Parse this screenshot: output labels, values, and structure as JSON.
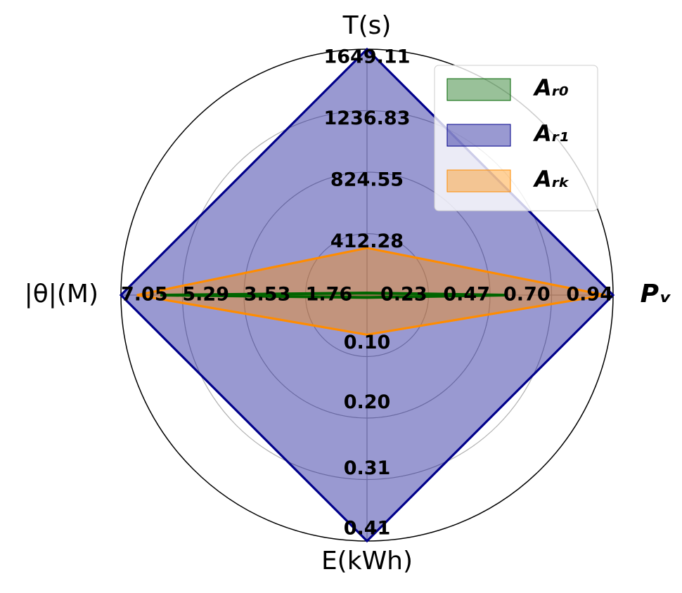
{
  "chart_data": {
    "type": "radar",
    "axes": [
      {
        "name": "T(s)",
        "lim": [
          0,
          1649.11
        ],
        "ticks": [
          412.28,
          824.55,
          1236.83,
          1649.11
        ]
      },
      {
        "name": "Pᵥ",
        "lim": [
          0,
          0.94
        ],
        "ticks": [
          0.23,
          0.47,
          {
            "value": 0.7,
            "label": "0.70"
          },
          0.94
        ]
      },
      {
        "name": "E(kWh)",
        "lim": [
          0,
          0.41
        ],
        "ticks": [
          {
            "value": 0.1,
            "label": "0.10"
          },
          {
            "value": 0.2,
            "label": "0.20"
          },
          0.31,
          0.41
        ]
      },
      {
        "name": "|θ|(M)",
        "lim": [
          0,
          7.05
        ],
        "ticks": [
          1.76,
          3.53,
          5.29,
          7.05
        ]
      }
    ],
    "series": [
      {
        "name": "Aᵣ₀",
        "color": "#006400",
        "values": [
          14,
          0.53,
          0.004,
          5.92
        ]
      },
      {
        "name": "Aᵣ₁",
        "color": "#00008b",
        "values": [
          1649.11,
          0.94,
          0.41,
          7.05
        ]
      },
      {
        "name": "Aᵣₖ",
        "color": "#ff8c00",
        "values": [
          316,
          0.91,
          0.066,
          6.59
        ]
      }
    ],
    "grid": true,
    "legend": "upper right"
  }
}
